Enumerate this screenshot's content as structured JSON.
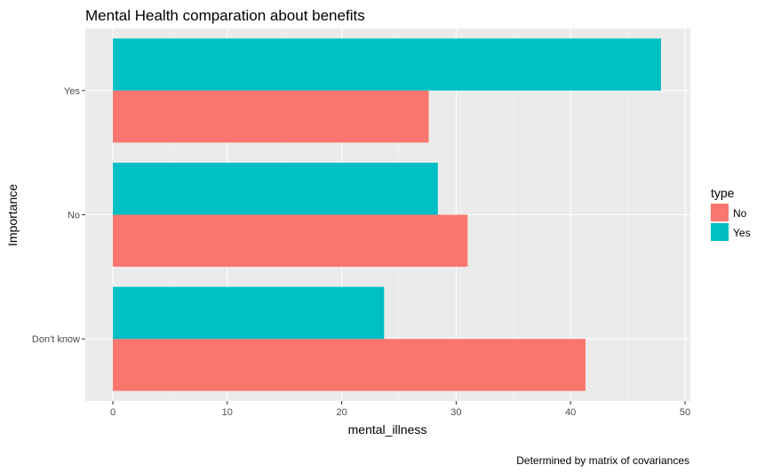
{
  "chart_data": {
    "type": "bar",
    "orientation": "horizontal",
    "title": "Mental Health comparation about benefits",
    "xlabel": "mental_illness",
    "ylabel": "Importance",
    "caption": "Determined by matrix of covariances",
    "categories": [
      "Don't know",
      "No",
      "Yes"
    ],
    "xlim": [
      0,
      50
    ],
    "xticks": [
      0,
      10,
      20,
      30,
      40,
      50
    ],
    "grid": true,
    "legend": {
      "title": "type",
      "placement": "right"
    },
    "series": [
      {
        "name": "No",
        "color": "#F8766D",
        "values": [
          41.3,
          31.0,
          27.6
        ]
      },
      {
        "name": "Yes",
        "color": "#00BFC4",
        "values": [
          23.7,
          28.4,
          47.9
        ]
      }
    ]
  }
}
